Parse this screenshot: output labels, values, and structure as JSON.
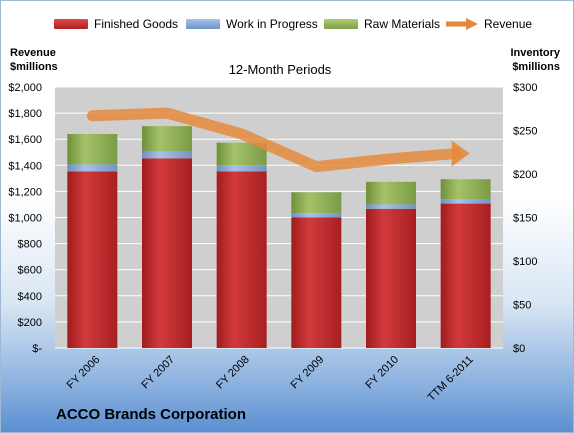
{
  "legend": {
    "finished_goods": "Finished Goods",
    "work_in_progress": "Work in Progress",
    "raw_materials": "Raw Materials",
    "revenue": "Revenue"
  },
  "left_axis_title": {
    "line1": "Revenue",
    "line2": "$millions"
  },
  "right_axis_title": {
    "line1": "Inventory",
    "line2": "$millions"
  },
  "subtitle": "12-Month Periods",
  "company": "ACCO Brands Corporation",
  "colors": {
    "finished_goods": "#c0282a",
    "work_in_progress": "#7fa1d4",
    "raw_materials": "#8daf53",
    "revenue": "#e58a3c",
    "plot_bg": "#cfcfcf"
  },
  "chart_data": {
    "type": "bar",
    "stacked": true,
    "categories": [
      "FY 2006",
      "FY 2007",
      "FY 2008",
      "FY 2009",
      "FY 2010",
      "TTM 6-2011"
    ],
    "series": [
      {
        "name": "Finished Goods",
        "axis": "right",
        "values": [
          203,
          218,
          203,
          150,
          160,
          166
        ]
      },
      {
        "name": "Work in Progress",
        "axis": "right",
        "values": [
          8,
          8,
          7,
          5,
          5,
          5
        ]
      },
      {
        "name": "Raw Materials",
        "axis": "right",
        "values": [
          35,
          29,
          26,
          24,
          26,
          23
        ]
      },
      {
        "name": "Revenue",
        "type": "line",
        "axis": "left",
        "values": [
          1780,
          1800,
          1640,
          1390,
          1450,
          1490
        ]
      }
    ],
    "left_axis": {
      "ylim": [
        0,
        2000
      ],
      "ticks": [
        "$-",
        "$200",
        "$400",
        "$600",
        "$800",
        "$1,000",
        "$1,200",
        "$1,400",
        "$1,600",
        "$1,800",
        "$2,000"
      ]
    },
    "right_axis": {
      "ylim": [
        0,
        300
      ],
      "ticks": [
        "$0",
        "$50",
        "$100",
        "$150",
        "$200",
        "$250",
        "$300"
      ]
    },
    "grid": true,
    "legend_position": "top"
  }
}
